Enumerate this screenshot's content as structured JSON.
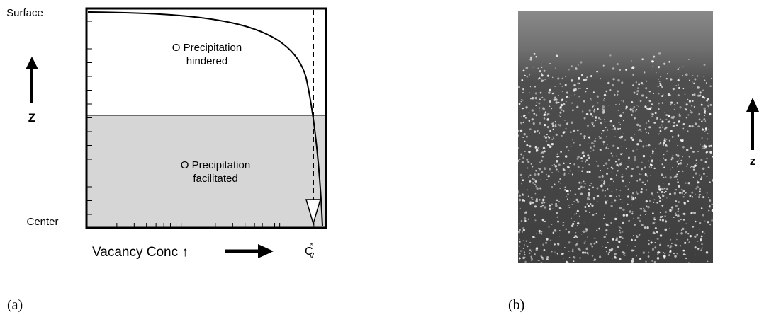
{
  "panel_a": {
    "label": "(a)",
    "y_top": "Surface",
    "y_bottom": "Center",
    "y_axis": "Z",
    "x_axis": "Vacancy Conc ↑",
    "threshold": {
      "base": "C",
      "sup": "*",
      "sub": "V"
    },
    "regions": [
      {
        "lines": [
          "O Precipitation",
          "hindered"
        ]
      },
      {
        "lines": [
          "O Precipitation",
          "facilitated"
        ]
      }
    ]
  },
  "panel_b": {
    "label": "(b)",
    "axis": "z"
  }
}
